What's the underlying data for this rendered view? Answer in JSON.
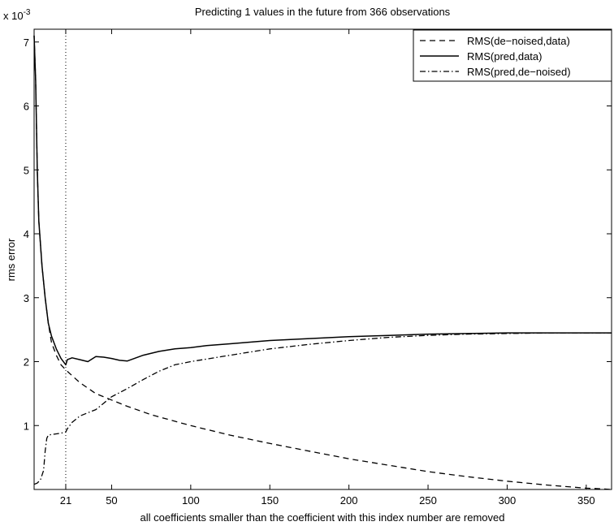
{
  "chart_data": {
    "type": "line",
    "title": "Predicting 1 values in the future from 366 observations",
    "xlabel": "all coefficients smaller than the coefficient with this index number are removed",
    "ylabel": "rms error",
    "y_exponent_label": "x 10",
    "y_exponent_power": "-3",
    "xlim": [
      1,
      366
    ],
    "ylim": [
      0,
      7.2
    ],
    "x_ticks": [
      21,
      50,
      100,
      150,
      200,
      250,
      300,
      350
    ],
    "x_tick_labels": [
      "21",
      "50",
      "100",
      "150",
      "200",
      "250",
      "300",
      "350"
    ],
    "y_ticks": [
      1,
      2,
      3,
      4,
      5,
      6,
      7
    ],
    "y_tick_labels": [
      "1",
      "2",
      "3",
      "4",
      "5",
      "6",
      "7"
    ],
    "vline_x": 21,
    "grid": false,
    "legend_position": "top-right",
    "series": [
      {
        "name": "RMS(de−noised,data)",
        "style": "dashed",
        "x": [
          1,
          2,
          3,
          4,
          6,
          8,
          10,
          12,
          15,
          18,
          21,
          25,
          30,
          40,
          50,
          60,
          75,
          100,
          125,
          150,
          175,
          200,
          225,
          250,
          275,
          300,
          325,
          350,
          360,
          366
        ],
        "y": [
          7.1,
          6.4,
          5.0,
          4.2,
          3.5,
          3.0,
          2.6,
          2.3,
          2.1,
          1.95,
          1.87,
          1.78,
          1.67,
          1.5,
          1.4,
          1.3,
          1.17,
          1.0,
          0.85,
          0.72,
          0.6,
          0.48,
          0.38,
          0.28,
          0.2,
          0.13,
          0.07,
          0.02,
          0.01,
          0.0
        ]
      },
      {
        "name": "RMS(pred,data)",
        "style": "solid",
        "x": [
          1,
          2,
          3,
          4,
          6,
          8,
          10,
          12,
          15,
          18,
          21,
          22,
          25,
          30,
          35,
          40,
          45,
          50,
          55,
          60,
          70,
          80,
          90,
          100,
          110,
          125,
          150,
          175,
          200,
          225,
          250,
          275,
          300,
          325,
          350,
          366
        ],
        "y": [
          7.1,
          6.4,
          5.0,
          4.2,
          3.5,
          3.0,
          2.6,
          2.4,
          2.2,
          2.05,
          1.95,
          2.03,
          2.06,
          2.03,
          2.0,
          2.08,
          2.07,
          2.05,
          2.02,
          2.01,
          2.1,
          2.16,
          2.2,
          2.22,
          2.25,
          2.28,
          2.33,
          2.36,
          2.39,
          2.41,
          2.43,
          2.44,
          2.45,
          2.45,
          2.45,
          2.45
        ]
      },
      {
        "name": "RMS(pred,de−noised)",
        "style": "dashdot",
        "x": [
          1,
          3,
          5,
          7,
          8,
          9,
          10,
          12,
          15,
          18,
          21,
          22,
          25,
          30,
          35,
          40,
          45,
          50,
          60,
          70,
          80,
          90,
          100,
          125,
          150,
          175,
          200,
          225,
          250,
          275,
          300,
          325,
          350,
          366
        ],
        "y": [
          0.08,
          0.1,
          0.15,
          0.3,
          0.6,
          0.8,
          0.85,
          0.86,
          0.87,
          0.88,
          0.9,
          0.95,
          1.05,
          1.15,
          1.2,
          1.25,
          1.35,
          1.45,
          1.58,
          1.72,
          1.85,
          1.95,
          2.0,
          2.1,
          2.2,
          2.27,
          2.33,
          2.38,
          2.41,
          2.43,
          2.44,
          2.45,
          2.45,
          2.45
        ]
      }
    ]
  }
}
